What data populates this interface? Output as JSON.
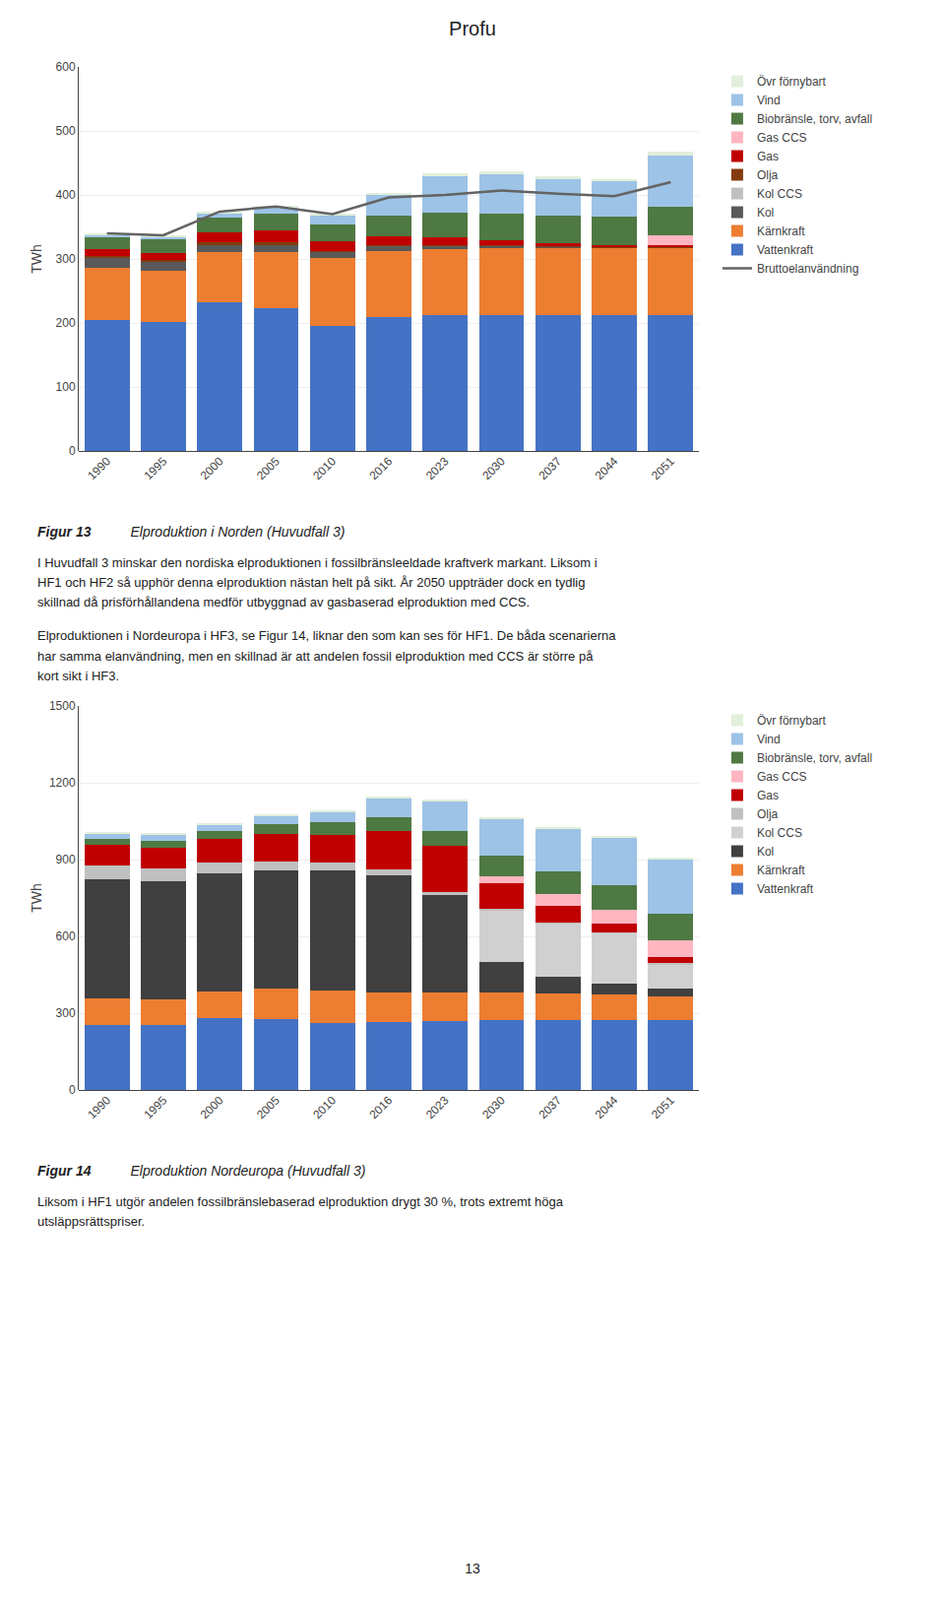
{
  "title": "Profu",
  "annotations": [
    "13"
  ],
  "chart_data": [
    {
      "type": "bar",
      "stacked": true,
      "grid": true,
      "legend": "right",
      "title": "Figur 13",
      "subtitle": "Elproduktion i Norden (Huvudfall 3)",
      "y_label": "TWh",
      "annotations": [
        "I Huvudfall 3 minskar den nordiska elproduktionen i fossilbränsleeldade kraftverk markant. Liksom i\nHF1 och HF2 så upphör denna elproduktion nästan helt på sikt. År 2050 uppträder dock en tydlig\nskillnad då prisförhållandena medför utbyggnad av gasbaserad elproduktion med CCS.",
        "Elproduktionen i Nordeuropa i HF3, se Figur 14, liknar den som kan ses för HF1. De båda scenarierna\nhar samma elanvändning, men en skillnad är att andelen fossil elproduktion med CCS är större på\nkort sikt i HF3."
      ],
      "categories": [
        "1990",
        "1995",
        "2000",
        "2005",
        "2010",
        "2016",
        "2023",
        "2030",
        "2037",
        "2044",
        "2051"
      ],
      "ylim": [
        0,
        600
      ],
      "yticks": [
        0,
        100,
        200,
        300,
        400,
        500,
        600
      ],
      "series": [
        {
          "name": "Vattenkraft",
          "color": "#4472C4",
          "values": [
            204,
            201,
            233,
            223,
            196,
            209,
            212,
            213,
            213,
            213,
            213
          ]
        },
        {
          "name": "Kärnkraft",
          "color": "#ED7D31",
          "values": [
            82,
            80,
            78,
            88,
            105,
            104,
            104,
            104,
            104,
            104,
            104
          ]
        },
        {
          "name": "Kol",
          "color": "#595959",
          "values": [
            15,
            15,
            12,
            12,
            10,
            8,
            5,
            3,
            2,
            1,
            1
          ]
        },
        {
          "name": "Kol CCS",
          "color": "#C0C0C0",
          "values": [
            0,
            0,
            0,
            0,
            0,
            0,
            0,
            0,
            0,
            0,
            0
          ]
        },
        {
          "name": "Olja",
          "color": "#843C0C",
          "values": [
            4,
            3,
            3,
            3,
            2,
            1,
            1,
            1,
            1,
            1,
            1
          ]
        },
        {
          "name": "Gas",
          "color": "#C00000",
          "values": [
            10,
            10,
            15,
            18,
            14,
            14,
            12,
            8,
            5,
            3,
            3
          ]
        },
        {
          "name": "Gas CCS",
          "color": "#FFB6C1",
          "values": [
            0,
            0,
            0,
            0,
            0,
            0,
            0,
            0,
            0,
            0,
            15
          ]
        },
        {
          "name": "Biobränsle, torv, avfall",
          "color": "#4F7942",
          "values": [
            20,
            22,
            24,
            27,
            27,
            32,
            38,
            42,
            43,
            44,
            45
          ]
        },
        {
          "name": "Vind",
          "color": "#9DC3E6",
          "values": [
            3,
            4,
            7,
            9,
            14,
            32,
            58,
            62,
            57,
            55,
            80
          ]
        },
        {
          "name": "Övr förnybart",
          "color": "#E2EFDA",
          "values": [
            2,
            2,
            2,
            2,
            2,
            3,
            4,
            4,
            4,
            4,
            5
          ]
        },
        {
          "name": "Bruttoelanvändning",
          "type": "line",
          "color": "#636363",
          "values": [
            340,
            337,
            374,
            382,
            370,
            396,
            400,
            407,
            402,
            398,
            420
          ]
        }
      ]
    },
    {
      "type": "bar",
      "stacked": true,
      "grid": true,
      "legend": "right",
      "title": "Figur 14",
      "subtitle": "Elproduktion Nordeuropa (Huvudfall 3)",
      "y_label": "TWh",
      "annotations": [
        "Liksom i HF1 utgör andelen fossilbränslebaserad elproduktion drygt 30 %, trots extremt höga\nutsläppsrättspriser."
      ],
      "categories": [
        "1990",
        "1995",
        "2000",
        "2005",
        "2010",
        "2016",
        "2023",
        "2030",
        "2037",
        "2044",
        "2051"
      ],
      "ylim": [
        0,
        1500
      ],
      "yticks": [
        0,
        300,
        600,
        900,
        1200,
        1500
      ],
      "series": [
        {
          "name": "Vattenkraft",
          "color": "#4472C4",
          "values": [
            252,
            252,
            280,
            276,
            260,
            265,
            268,
            272,
            272,
            272,
            272
          ]
        },
        {
          "name": "Kärnkraft",
          "color": "#ED7D31",
          "values": [
            105,
            100,
            105,
            120,
            130,
            115,
            112,
            108,
            104,
            100,
            95
          ]
        },
        {
          "name": "Kol",
          "color": "#404040",
          "values": [
            465,
            465,
            460,
            460,
            468,
            460,
            380,
            120,
            65,
            45,
            30
          ]
        },
        {
          "name": "Kol CCS",
          "color": "#D0D0D0",
          "values": [
            0,
            0,
            0,
            0,
            0,
            0,
            0,
            200,
            210,
            195,
            95
          ]
        },
        {
          "name": "Olja",
          "color": "#C0C0C0",
          "values": [
            55,
            50,
            45,
            38,
            32,
            22,
            12,
            6,
            4,
            3,
            3
          ]
        },
        {
          "name": "Gas",
          "color": "#C00000",
          "values": [
            80,
            80,
            90,
            105,
            105,
            150,
            180,
            100,
            65,
            35,
            25
          ]
        },
        {
          "name": "Gas CCS",
          "color": "#FFB6C1",
          "values": [
            0,
            0,
            0,
            0,
            0,
            0,
            0,
            30,
            45,
            55,
            65
          ]
        },
        {
          "name": "Biobränsle, torv, avfall",
          "color": "#4F7942",
          "values": [
            25,
            28,
            32,
            40,
            50,
            55,
            60,
            80,
            90,
            95,
            105
          ]
        },
        {
          "name": "Vind",
          "color": "#9DC3E6",
          "values": [
            18,
            22,
            26,
            32,
            42,
            75,
            115,
            145,
            165,
            185,
            210
          ]
        },
        {
          "name": "Övr förnybart",
          "color": "#E2EFDA",
          "values": [
            5,
            5,
            5,
            5,
            5,
            5,
            5,
            5,
            5,
            5,
            5
          ]
        }
      ]
    }
  ]
}
